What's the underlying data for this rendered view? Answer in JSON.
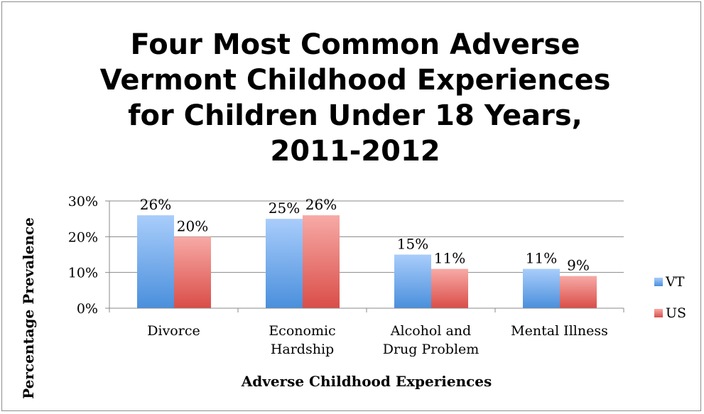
{
  "chart_data": {
    "type": "bar",
    "title": "Four Most Common Adverse Vermont Childhood Experiences for Children Under 18 Years, 2011-2012",
    "xlabel": "Adverse Childhood Experiences",
    "ylabel": "Percentage Prevalence",
    "categories": [
      [
        "Divorce"
      ],
      [
        "Economic",
        "Hardship"
      ],
      [
        "Alcohol and",
        "Drug Problem"
      ],
      [
        "Mental Illness"
      ]
    ],
    "series": [
      {
        "name": "VT",
        "values": [
          26,
          25,
          15,
          11
        ],
        "labels": [
          "26%",
          "25%",
          "15%",
          "11%"
        ],
        "color_top": "#a9cdfb",
        "color_bottom": "#4a8fdc"
      },
      {
        "name": "US",
        "values": [
          20,
          26,
          11,
          9
        ],
        "labels": [
          "20%",
          "26%",
          "11%",
          "9%"
        ],
        "color_top": "#f7aaa6",
        "color_bottom": "#da4d48"
      }
    ],
    "ylim": [
      0,
      30
    ],
    "yticks": [
      0,
      10,
      20,
      30
    ],
    "ytick_labels": [
      "0%",
      "10%",
      "20%",
      "30%"
    ],
    "grid": true,
    "legend_position": "right"
  }
}
